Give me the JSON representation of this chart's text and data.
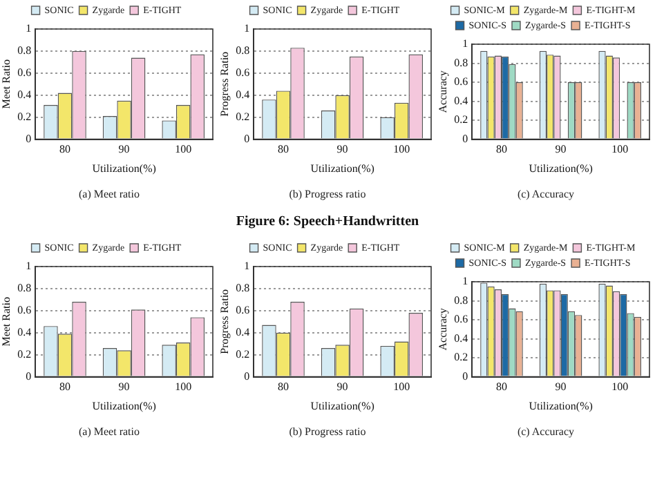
{
  "chart_data": [
    {
      "type": "bar",
      "categories": [
        "80",
        "90",
        "100"
      ],
      "xlabel": "Utilization(%)",
      "ylabel": "Meet Ratio",
      "ylim": [
        0,
        1
      ],
      "yticks": [
        0,
        0.2,
        0.4,
        0.6,
        0.8,
        1
      ],
      "grid": "y",
      "legend": "top",
      "annotations": [
        "(a) Meet ratio"
      ],
      "series": [
        {
          "name": "SONIC",
          "color": "#d4ebf4",
          "values": [
            0.31,
            0.21,
            0.17
          ]
        },
        {
          "name": "Zygarde",
          "color": "#f3e66a",
          "values": [
            0.42,
            0.35,
            0.31
          ]
        },
        {
          "name": "E-TIGHT",
          "color": "#f4c7dc",
          "values": [
            0.8,
            0.74,
            0.77
          ]
        }
      ]
    },
    {
      "type": "bar",
      "categories": [
        "80",
        "90",
        "100"
      ],
      "xlabel": "Utilization(%)",
      "ylabel": "Progress Ratio",
      "ylim": [
        0,
        1
      ],
      "yticks": [
        0,
        0.2,
        0.4,
        0.6,
        0.8,
        1
      ],
      "grid": "y",
      "legend": "top",
      "annotations": [
        "(b) Progress ratio",
        "Figure 6: Speech+Handwritten"
      ],
      "series": [
        {
          "name": "SONIC",
          "color": "#d4ebf4",
          "values": [
            0.36,
            0.26,
            0.2
          ]
        },
        {
          "name": "Zygarde",
          "color": "#f3e66a",
          "values": [
            0.44,
            0.4,
            0.33
          ]
        },
        {
          "name": "E-TIGHT",
          "color": "#f4c7dc",
          "values": [
            0.83,
            0.75,
            0.77
          ]
        }
      ]
    },
    {
      "type": "bar",
      "categories": [
        "80",
        "90",
        "100"
      ],
      "xlabel": "Utilization(%)",
      "ylabel": "Accuracy",
      "ylim": [
        0,
        1
      ],
      "yticks": [
        0,
        0.2,
        0.4,
        0.6,
        0.8,
        1
      ],
      "grid": "y",
      "legend": "top",
      "annotations": [
        "(c) Accuracy"
      ],
      "series": [
        {
          "name": "SONIC-M",
          "color": "#d4ebf4",
          "values": [
            0.93,
            0.93,
            0.93
          ]
        },
        {
          "name": "Zygarde-M",
          "color": "#f3e66a",
          "values": [
            0.87,
            0.89,
            0.88
          ]
        },
        {
          "name": "E-TIGHT-M",
          "color": "#f4c7dc",
          "values": [
            0.88,
            0.88,
            0.86
          ]
        },
        {
          "name": "SONIC-S",
          "color": "#1d6aa5",
          "values": [
            0.87,
            null,
            null
          ]
        },
        {
          "name": "Zygarde-S",
          "color": "#9fdac4",
          "values": [
            0.79,
            0.6,
            0.6
          ]
        },
        {
          "name": "E-TIGHT-S",
          "color": "#e9b193",
          "values": [
            0.6,
            0.6,
            0.6
          ]
        }
      ]
    },
    {
      "type": "bar",
      "categories": [
        "80",
        "90",
        "100"
      ],
      "xlabel": "Utilization(%)",
      "ylabel": "Meet Ratio",
      "ylim": [
        0,
        1
      ],
      "yticks": [
        0,
        0.2,
        0.4,
        0.6,
        0.8,
        1
      ],
      "grid": "y",
      "legend": "top",
      "annotations": [
        "(a) Meet ratio"
      ],
      "series": [
        {
          "name": "SONIC",
          "color": "#d4ebf4",
          "values": [
            0.46,
            0.26,
            0.29
          ]
        },
        {
          "name": "Zygarde",
          "color": "#f3e66a",
          "values": [
            0.39,
            0.24,
            0.31
          ]
        },
        {
          "name": "E-TIGHT",
          "color": "#f4c7dc",
          "values": [
            0.68,
            0.61,
            0.54
          ]
        }
      ]
    },
    {
      "type": "bar",
      "categories": [
        "80",
        "90",
        "100"
      ],
      "xlabel": "Utilization(%)",
      "ylabel": "Progress Ratio",
      "ylim": [
        0,
        1
      ],
      "yticks": [
        0,
        0.2,
        0.4,
        0.6,
        0.8,
        1
      ],
      "grid": "y",
      "legend": "top",
      "annotations": [
        "(b) Progress ratio"
      ],
      "series": [
        {
          "name": "SONIC",
          "color": "#d4ebf4",
          "values": [
            0.47,
            0.26,
            0.28
          ]
        },
        {
          "name": "Zygarde",
          "color": "#f3e66a",
          "values": [
            0.4,
            0.29,
            0.32
          ]
        },
        {
          "name": "E-TIGHT",
          "color": "#f4c7dc",
          "values": [
            0.68,
            0.62,
            0.58
          ]
        }
      ]
    },
    {
      "type": "bar",
      "categories": [
        "80",
        "90",
        "100"
      ],
      "xlabel": "Utilization(%)",
      "ylabel": "Accuracy",
      "ylim": [
        0,
        1
      ],
      "yticks": [
        0,
        0.2,
        0.4,
        0.6,
        0.8,
        1
      ],
      "grid": "y",
      "legend": "top",
      "annotations": [
        "(c) Accuracy"
      ],
      "series": [
        {
          "name": "SONIC-M",
          "color": "#d4ebf4",
          "values": [
            0.99,
            0.98,
            0.98
          ]
        },
        {
          "name": "Zygarde-M",
          "color": "#f3e66a",
          "values": [
            0.95,
            0.91,
            0.96
          ]
        },
        {
          "name": "E-TIGHT-M",
          "color": "#f4c7dc",
          "values": [
            0.92,
            0.91,
            0.9
          ]
        },
        {
          "name": "SONIC-S",
          "color": "#1d6aa5",
          "values": [
            0.87,
            0.87,
            0.87
          ]
        },
        {
          "name": "Zygarde-S",
          "color": "#9fdac4",
          "values": [
            0.72,
            0.69,
            0.67
          ]
        },
        {
          "name": "E-TIGHT-S",
          "color": "#e9b193",
          "values": [
            0.69,
            0.65,
            0.63
          ]
        }
      ]
    }
  ]
}
